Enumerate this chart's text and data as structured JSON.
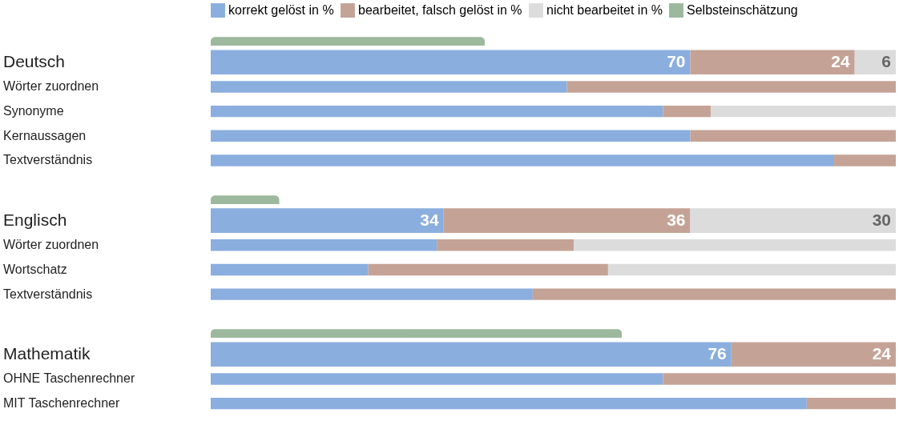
{
  "chart_data": {
    "type": "bar",
    "orientation": "horizontal",
    "stacked": true,
    "legend": "top",
    "tick_labels": "y",
    "xlim": [
      0,
      100
    ],
    "categories": [
      null,
      "Deutsch",
      "Wörter zuordnen",
      "Synonyme",
      "Kernaussagen",
      "Textverständnis",
      null,
      "Englisch",
      "Wörter zuordnen",
      "Wortschatz",
      "Textverständnis",
      null,
      "Mathematik",
      "OHNE Taschenrechner",
      "MIT Taschenrechner"
    ],
    "series": [
      {
        "name": "korrekt gelöst in %",
        "color": "#8aaede",
        "values": [
          null,
          70,
          52,
          66,
          70,
          91,
          null,
          34,
          33,
          23,
          47,
          null,
          76,
          66,
          87
        ],
        "value_labels": [
          null,
          "70",
          null,
          null,
          null,
          null,
          null,
          "34",
          null,
          null,
          null,
          null,
          "76",
          null,
          null
        ]
      },
      {
        "name": "bearbeitet, falsch gelöst in %",
        "color": "#c4a396",
        "values": [
          null,
          24,
          48,
          7,
          30,
          9,
          null,
          36,
          20,
          35,
          53,
          null,
          24,
          34,
          13
        ],
        "value_labels": [
          null,
          "24",
          null,
          null,
          null,
          null,
          null,
          "36",
          null,
          null,
          null,
          null,
          "24",
          null,
          null
        ]
      },
      {
        "name": "nicht bearbeitet in %",
        "color": "#dcdcdc",
        "values": [
          null,
          6,
          0,
          27,
          0,
          0,
          null,
          30,
          47,
          42,
          0,
          null,
          0,
          0,
          0
        ],
        "value_labels": [
          null,
          "6",
          null,
          null,
          null,
          null,
          null,
          "30",
          null,
          null,
          null,
          null,
          null,
          null,
          null
        ]
      },
      {
        "name": "Selbsteinschätzung",
        "color": "#9cb89d",
        "values": [
          40,
          null,
          null,
          null,
          null,
          null,
          10,
          null,
          null,
          null,
          null,
          60,
          null,
          null,
          null
        ]
      }
    ]
  }
}
